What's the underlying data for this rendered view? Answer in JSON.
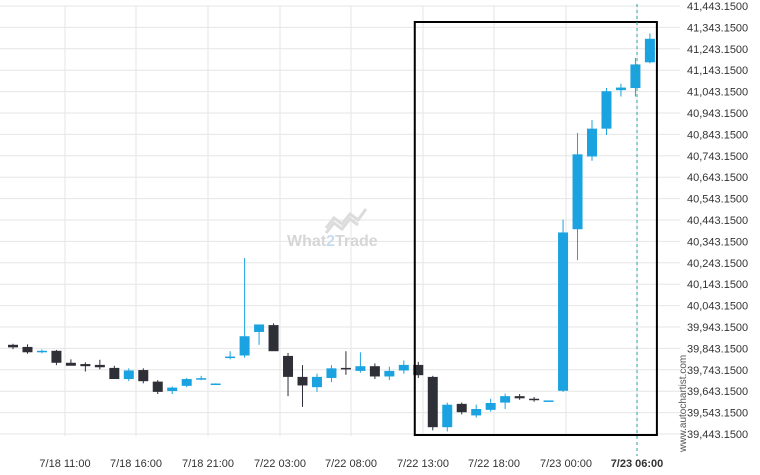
{
  "chart_data": {
    "type": "candlestick",
    "y_ticks": [
      "41,443.1500",
      "41,343.1500",
      "41,243.1500",
      "41,143.1500",
      "41,043.1500",
      "40,943.1500",
      "40,843.1500",
      "40,743.1500",
      "40,643.1500",
      "40,543.1500",
      "40,443.1500",
      "40,343.1500",
      "40,243.1500",
      "40,143.1500",
      "40,043.1500",
      "39,943.1500",
      "39,843.1500",
      "39,743.1500",
      "39,643.1500",
      "39,543.1500",
      "39,443.1500"
    ],
    "ylim": [
      39443.15,
      41443.15
    ],
    "x_ticks": [
      "7/18 11:00",
      "7/18 16:00",
      "7/18 21:00",
      "7/22 03:00",
      "7/22 08:00",
      "7/22 13:00",
      "7/22 18:00",
      "7/23 00:00",
      "7/23 06:00"
    ],
    "highlight_x_tick": "7/23 06:00",
    "grid": true,
    "candles": [
      {
        "o": 39860,
        "h": 39865,
        "l": 39840,
        "c": 39848
      },
      {
        "o": 39850,
        "h": 39862,
        "l": 39818,
        "c": 39825
      },
      {
        "o": 39830,
        "h": 39838,
        "l": 39820,
        "c": 39832
      },
      {
        "o": 39832,
        "h": 39836,
        "l": 39765,
        "c": 39776
      },
      {
        "o": 39776,
        "h": 39792,
        "l": 39764,
        "c": 39762
      },
      {
        "o": 39770,
        "h": 39778,
        "l": 39735,
        "c": 39760
      },
      {
        "o": 39766,
        "h": 39790,
        "l": 39745,
        "c": 39755
      },
      {
        "o": 39752,
        "h": 39762,
        "l": 39718,
        "c": 39700
      },
      {
        "o": 39700,
        "h": 39750,
        "l": 39690,
        "c": 39740
      },
      {
        "o": 39742,
        "h": 39750,
        "l": 39680,
        "c": 39690
      },
      {
        "o": 39688,
        "h": 39695,
        "l": 39630,
        "c": 39640
      },
      {
        "o": 39644,
        "h": 39665,
        "l": 39630,
        "c": 39660
      },
      {
        "o": 39668,
        "h": 39705,
        "l": 39662,
        "c": 39700
      },
      {
        "o": 39700,
        "h": 39715,
        "l": 39695,
        "c": 39704
      },
      {
        "o": 39678,
        "h": 39680,
        "l": 39676,
        "c": 39679
      },
      {
        "o": 39800,
        "h": 39830,
        "l": 39792,
        "c": 39805
      },
      {
        "o": 39810,
        "h": 40265,
        "l": 39800,
        "c": 39900
      },
      {
        "o": 39920,
        "h": 39950,
        "l": 39860,
        "c": 39955
      },
      {
        "o": 39952,
        "h": 39960,
        "l": 39840,
        "c": 39830
      },
      {
        "o": 39808,
        "h": 39822,
        "l": 39620,
        "c": 39710
      },
      {
        "o": 39710,
        "h": 39765,
        "l": 39570,
        "c": 39670
      },
      {
        "o": 39662,
        "h": 39725,
        "l": 39640,
        "c": 39710
      },
      {
        "o": 39705,
        "h": 39765,
        "l": 39685,
        "c": 39750
      },
      {
        "o": 39752,
        "h": 39830,
        "l": 39720,
        "c": 39748
      },
      {
        "o": 39738,
        "h": 39825,
        "l": 39730,
        "c": 39760
      },
      {
        "o": 39760,
        "h": 39773,
        "l": 39700,
        "c": 39712
      },
      {
        "o": 39712,
        "h": 39758,
        "l": 39695,
        "c": 39738
      },
      {
        "o": 39740,
        "h": 39787,
        "l": 39725,
        "c": 39766
      },
      {
        "o": 39766,
        "h": 39780,
        "l": 39705,
        "c": 39718
      },
      {
        "o": 39710,
        "h": 39715,
        "l": 39460,
        "c": 39475
      },
      {
        "o": 39475,
        "h": 39590,
        "l": 39455,
        "c": 39580
      },
      {
        "o": 39584,
        "h": 39590,
        "l": 39535,
        "c": 39545
      },
      {
        "o": 39530,
        "h": 39580,
        "l": 39520,
        "c": 39560
      },
      {
        "o": 39556,
        "h": 39608,
        "l": 39548,
        "c": 39588
      },
      {
        "o": 39590,
        "h": 39632,
        "l": 39560,
        "c": 39620
      },
      {
        "o": 39620,
        "h": 39630,
        "l": 39603,
        "c": 39610
      },
      {
        "o": 39608,
        "h": 39616,
        "l": 39594,
        "c": 39607
      },
      {
        "o": 39598,
        "h": 39600,
        "l": 39596,
        "c": 39600
      },
      {
        "o": 39645,
        "h": 40445,
        "l": 39640,
        "c": 40385
      },
      {
        "o": 40400,
        "h": 40850,
        "l": 40255,
        "c": 40750
      },
      {
        "o": 40740,
        "h": 40910,
        "l": 40720,
        "c": 40870
      },
      {
        "o": 40870,
        "h": 41060,
        "l": 40840,
        "c": 41045
      },
      {
        "o": 41050,
        "h": 41080,
        "l": 41020,
        "c": 41062
      },
      {
        "o": 41060,
        "h": 41200,
        "l": 41020,
        "c": 41170
      },
      {
        "o": 41180,
        "h": 41315,
        "l": 41175,
        "c": 41290
      }
    ],
    "highlight_box": {
      "from_index": 29,
      "to_index": 44
    },
    "colors": {
      "up": "#1aa3e0",
      "down": "#2f2f38",
      "grid": "#e6e6e6",
      "box": "#000000",
      "vline": "#26a69a"
    }
  },
  "watermark": {
    "text_part1": "What",
    "text_part2": "2",
    "text_part3": "Trade"
  },
  "credit": "www.autochartist.com"
}
